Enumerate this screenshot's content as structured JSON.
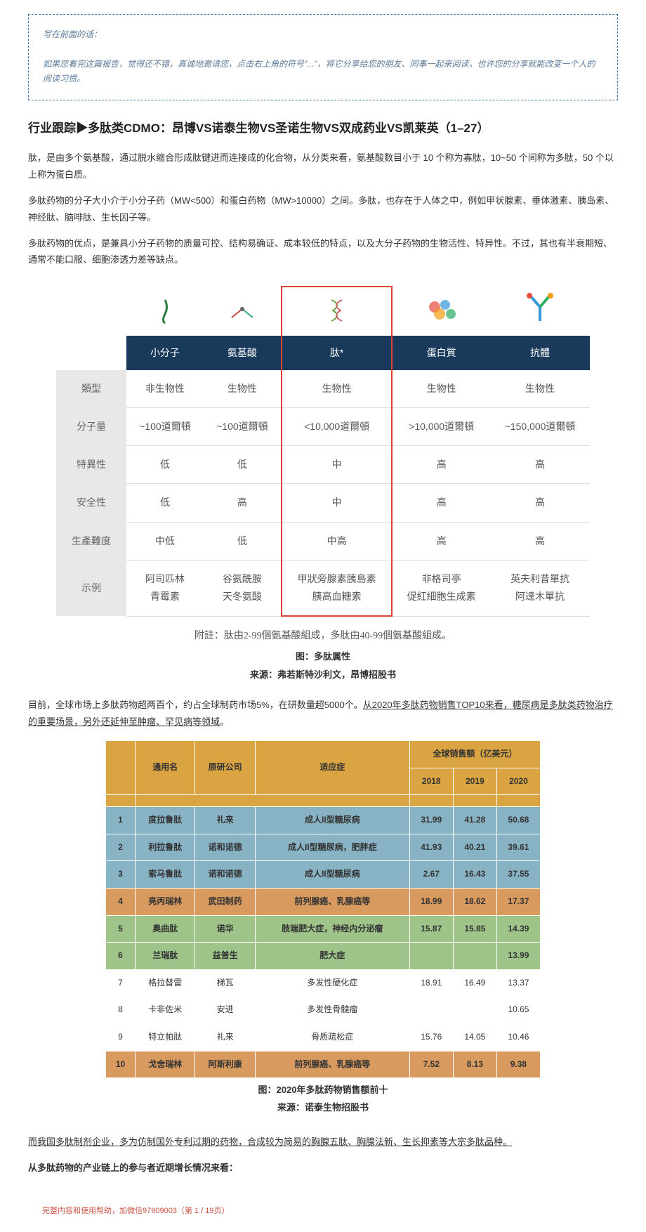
{
  "preface": {
    "line1": "写在前面的话：",
    "line2": "如果您看完这篇报告，觉得还不错，真诚地邀请您，点击右上角的符号\"...\"，将它分享给您的朋友、同事一起来阅读，也许您的分享就能改变一个人的阅读习惯。"
  },
  "title": "行业跟踪▶多肽类CDMO：昂博VS诺泰生物VS圣诺生物VS双成药业VS凯莱英（1–27）",
  "para1": "肽，是由多个氨基酸，通过脱水缩合形成肽键进而连接成的化合物，从分类来看，氨基酸数目小于 10 个称为寡肽，10~50 个间称为多肽，50 个以上称为蛋白质。",
  "para2": "多肽药物的分子大小介于小分子药（MW<500）和蛋白药物（MW>10000）之间。多肽，也存在于人体之中，例如甲状腺素、垂体激素、胰岛素、神经肽、脑啡肽、生长因子等。",
  "para3": "多肽药物的优点，是兼具小分子药物的质量可控、结构易确证、成本较低的特点，以及大分子药物的生物活性、特异性。不过，其也有半衰期短、通常不能口服、细胞渗透力差等缺点。",
  "table1": {
    "headers": [
      "小分子",
      "氨基酸",
      "肽*",
      "蛋白質",
      "抗體"
    ],
    "rows": [
      {
        "label": "類型",
        "cells": [
          "非生物性",
          "生物性",
          "生物性",
          "生物性",
          "生物性"
        ]
      },
      {
        "label": "分子量",
        "cells": [
          "~100道爾頓",
          "~100道爾頓",
          "<10,000道爾頓",
          ">10,000道爾頓",
          "~150,000道爾頓"
        ]
      },
      {
        "label": "特異性",
        "cells": [
          "低",
          "低",
          "中",
          "高",
          "高"
        ]
      },
      {
        "label": "安全性",
        "cells": [
          "低",
          "高",
          "中",
          "高",
          "高"
        ]
      },
      {
        "label": "生產難度",
        "cells": [
          "中低",
          "低",
          "中高",
          "高",
          "高"
        ]
      },
      {
        "label": "示例",
        "cells": [
          "阿司匹林\n青霉素",
          "谷氨酰胺\n天冬氨酸",
          "甲狀旁腺素胰島素\n胰高血糖素",
          "非格司亭\n促紅細胞生成素",
          "英夫利昔單抗\n阿達木單抗"
        ]
      }
    ],
    "note": "附註：肽由2-99個氨基酸組成，多肽由40-99個氨基酸組成。",
    "caption": "图：多肽属性",
    "source": "来源：弗若斯特沙利文，昂博招股书"
  },
  "para4_a": "目前，全球市场上多肽药物超两百个，约占全球制药市场5%，在研数量超5000个。",
  "para4_b": "从2020年多肽药物销售TOP10来看，糖尿病是多肽类药物治疗的重要场景，另外还延伸至肿瘤、罕见病等领域",
  "para4_c": "。",
  "table2": {
    "head": {
      "col2": "通用名",
      "col3": "原研公司",
      "col4": "适应症",
      "col5": "全球销售额（亿美元）"
    },
    "years": [
      "2018",
      "2019",
      "2020"
    ],
    "rows": [
      {
        "n": "1",
        "name": "度拉鲁肽",
        "co": "礼来",
        "ind": "成人II型糖尿病",
        "v": [
          "31.99",
          "41.28",
          "50.68"
        ],
        "bg": "#88b3c4"
      },
      {
        "n": "2",
        "name": "利拉鲁肽",
        "co": "诺和诺德",
        "ind": "成人II型糖尿病，肥胖症",
        "v": [
          "41.93",
          "40.21",
          "39.61"
        ],
        "bg": "#88b3c4"
      },
      {
        "n": "3",
        "name": "索马鲁肽",
        "co": "诺和诺德",
        "ind": "成人II型糖尿病",
        "v": [
          "2.67",
          "16.43",
          "37.55"
        ],
        "bg": "#88b3c4"
      },
      {
        "n": "4",
        "name": "亮丙瑞林",
        "co": "武田制药",
        "ind": "前列腺癌、乳腺癌等",
        "v": [
          "18.99",
          "18.62",
          "17.37"
        ],
        "bg": "#d89a5e"
      },
      {
        "n": "5",
        "name": "奥曲肽",
        "co": "诺华",
        "ind": "肢端肥大症，神经内分泌瘤",
        "v": [
          "15.87",
          "15.85",
          "14.39"
        ],
        "bg": "#9fc48a"
      },
      {
        "n": "6",
        "name": "兰瑞肽",
        "co": "益普生",
        "ind": "肥大症",
        "v": [
          "",
          "",
          "13.99"
        ],
        "bg": "#9fc48a"
      },
      {
        "n": "7",
        "name": "格拉替雷",
        "co": "梯瓦",
        "ind": "多发性硬化症",
        "v": [
          "18.91",
          "16.49",
          "13.37"
        ],
        "bg": "#ffffff"
      },
      {
        "n": "8",
        "name": "卡非佐米",
        "co": "安进",
        "ind": "多发性骨髓瘤",
        "v": [
          "",
          "",
          "10.65"
        ],
        "bg": "#ffffff"
      },
      {
        "n": "9",
        "name": "特立帕肽",
        "co": "礼来",
        "ind": "骨质疏松症",
        "v": [
          "15.76",
          "14.05",
          "10.46"
        ],
        "bg": "#ffffff"
      },
      {
        "n": "10",
        "name": "戈舍瑞林",
        "co": "阿斯利康",
        "ind": "前列腺癌、乳腺癌等",
        "v": [
          "7.52",
          "8.13",
          "9.38"
        ],
        "bg": "#d89a5e"
      }
    ],
    "caption": "图：2020年多肽药物销售额前十",
    "source": "来源：诺泰生物招股书"
  },
  "para5": "而我国多肽制剂企业，多为仿制国外专利过期的药物，合成较为简易的胸腺五肽、胸腺法新、生长抑素等大宗多肽品种。",
  "para6": "从多肽药物的产业链上的参与者近期增长情况来看：",
  "footer": "完整内容和使用帮助，加微信97909003（第 1 / 19页）"
}
